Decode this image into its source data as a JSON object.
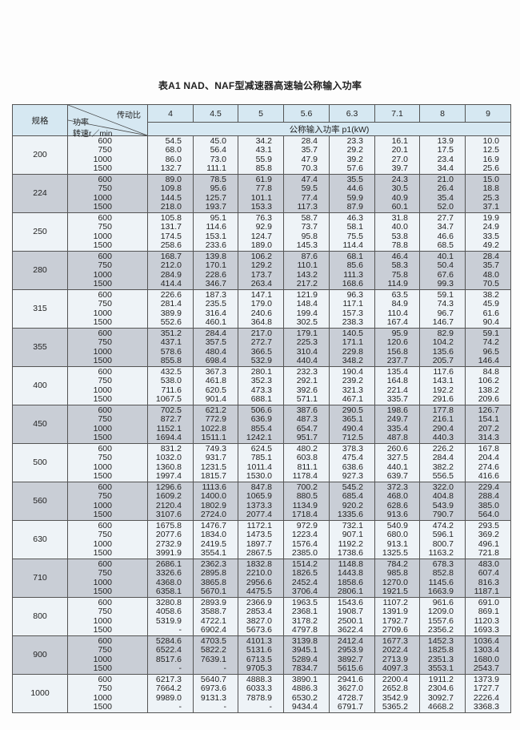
{
  "title": "表A1   NAD、NAF型减速器高速轴公称输入功率",
  "header": {
    "spec_label": "规格",
    "ratio_label": "传动比",
    "power_label": "功率",
    "speed_label": "转速r／min",
    "unit_label": "公称输入功率 p1(kW)",
    "ratios": [
      "4",
      "4.5",
      "5",
      "5.6",
      "6.3",
      "7.1",
      "8",
      "9"
    ]
  },
  "speeds": [
    "600",
    "750",
    "1000",
    "1500"
  ],
  "groups": [
    {
      "size": "200",
      "values": [
        [
          "54.5",
          "68.0",
          "86.0",
          "132.7"
        ],
        [
          "45.0",
          "56.4",
          "73.0",
          "111.1"
        ],
        [
          "34.2",
          "43.1",
          "55.9",
          "85.8"
        ],
        [
          "28.4",
          "35.7",
          "47.9",
          "70.3"
        ],
        [
          "23.3",
          "29.2",
          "39.2",
          "57.6"
        ],
        [
          "16.1",
          "20.1",
          "27.0",
          "39.7"
        ],
        [
          "13.9",
          "17.5",
          "23.4",
          "34.4"
        ],
        [
          "10.0",
          "12.5",
          "16.9",
          "25.6"
        ]
      ]
    },
    {
      "size": "224",
      "values": [
        [
          "89.0",
          "109.8",
          "144.5",
          "218.0"
        ],
        [
          "78.5",
          "95.6",
          "125.7",
          "193.7"
        ],
        [
          "61.9",
          "77.8",
          "101.1",
          "153.3"
        ],
        [
          "47.4",
          "59.5",
          "77.4",
          "117.3"
        ],
        [
          "35.5",
          "44.6",
          "59.9",
          "87.9"
        ],
        [
          "24.3",
          "30.5",
          "40.9",
          "60.1"
        ],
        [
          "21.0",
          "26.4",
          "35.4",
          "52.0"
        ],
        [
          "15.0",
          "18.8",
          "25.3",
          "37.1"
        ]
      ]
    },
    {
      "size": "250",
      "values": [
        [
          "105.8",
          "131.7",
          "174.5",
          "258.6"
        ],
        [
          "95.1",
          "114.6",
          "153.1",
          "233.6"
        ],
        [
          "76.3",
          "92.9",
          "124.7",
          "189.0"
        ],
        [
          "58.7",
          "73.7",
          "95.8",
          "145.3"
        ],
        [
          "46.3",
          "58.1",
          "75.5",
          "114.4"
        ],
        [
          "31.8",
          "40.0",
          "53.8",
          "78.8"
        ],
        [
          "27.7",
          "34.7",
          "46.6",
          "68.5"
        ],
        [
          "19.9",
          "24.9",
          "33.5",
          "49.2"
        ]
      ]
    },
    {
      "size": "280",
      "values": [
        [
          "168.7",
          "212.0",
          "284.9",
          "414.4"
        ],
        [
          "139.8",
          "170.1",
          "228.6",
          "346.7"
        ],
        [
          "106.2",
          "129.2",
          "173.7",
          "263.4"
        ],
        [
          "87.6",
          "110.1",
          "143.2",
          "217.2"
        ],
        [
          "68.1",
          "85.6",
          "111.3",
          "168.6"
        ],
        [
          "46.4",
          "58.3",
          "75.8",
          "114.9"
        ],
        [
          "40.1",
          "50.4",
          "67.6",
          "99.3"
        ],
        [
          "28.4",
          "35.7",
          "48.0",
          "70.5"
        ]
      ]
    },
    {
      "size": "315",
      "values": [
        [
          "226.6",
          "281.4",
          "389.9",
          "552.6"
        ],
        [
          "187.3",
          "235.5",
          "316.4",
          "460.1"
        ],
        [
          "147.1",
          "179.0",
          "240.6",
          "364.8"
        ],
        [
          "121.9",
          "148.4",
          "199.4",
          "302.5"
        ],
        [
          "96.3",
          "117.1",
          "157.3",
          "238.3"
        ],
        [
          "63.5",
          "84.9",
          "110.4",
          "167.4"
        ],
        [
          "59.1",
          "74.3",
          "96.7",
          "146.7"
        ],
        [
          "38.2",
          "45.9",
          "61.6",
          "90.4"
        ]
      ]
    },
    {
      "size": "355",
      "values": [
        [
          "351.2",
          "437.1",
          "578.6",
          "855.8"
        ],
        [
          "284.4",
          "357.5",
          "480.4",
          "698.4"
        ],
        [
          "217.0",
          "272.7",
          "366.5",
          "532.9"
        ],
        [
          "179.1",
          "225.3",
          "310.4",
          "440.4"
        ],
        [
          "140.5",
          "171.1",
          "229.8",
          "348.2"
        ],
        [
          "95.9",
          "120.6",
          "156.8",
          "237.7"
        ],
        [
          "82.9",
          "104.2",
          "135.6",
          "205.7"
        ],
        [
          "59.1",
          "74.2",
          "96.5",
          "146.4"
        ]
      ]
    },
    {
      "size": "400",
      "values": [
        [
          "432.5",
          "538.0",
          "711.6",
          "1067.5"
        ],
        [
          "367.3",
          "461.8",
          "620.5",
          "901.4"
        ],
        [
          "280.1",
          "352.3",
          "473.3",
          "688.1"
        ],
        [
          "232.3",
          "292.1",
          "392.6",
          "571.1"
        ],
        [
          "190.4",
          "239.2",
          "321.3",
          "467.1"
        ],
        [
          "135.4",
          "164.8",
          "221.4",
          "335.7"
        ],
        [
          "117.6",
          "143.1",
          "192.2",
          "291.6"
        ],
        [
          "84.8",
          "106.2",
          "138.2",
          "209.6"
        ]
      ]
    },
    {
      "size": "450",
      "values": [
        [
          "702.5",
          "872.7",
          "1152.1",
          "1694.4"
        ],
        [
          "621.2",
          "772.9",
          "1022.8",
          "1511.1"
        ],
        [
          "506.6",
          "636.9",
          "855.4",
          "1242.1"
        ],
        [
          "387.6",
          "487.3",
          "654.7",
          "951.7"
        ],
        [
          "290.5",
          "365.1",
          "490.4",
          "712.5"
        ],
        [
          "198.6",
          "249.7",
          "335.4",
          "487.8"
        ],
        [
          "177.8",
          "216.1",
          "290.4",
          "440.3"
        ],
        [
          "126.7",
          "154.1",
          "207.2",
          "314.3"
        ]
      ]
    },
    {
      "size": "500",
      "values": [
        [
          "831.2",
          "1032.0",
          "1360.8",
          "1997.4"
        ],
        [
          "749.3",
          "931.7",
          "1231.5",
          "1815.7"
        ],
        [
          "624.5",
          "785.1",
          "1011.4",
          "1530.0"
        ],
        [
          "480.2",
          "603.8",
          "811.1",
          "1178.4"
        ],
        [
          "378.3",
          "475.4",
          "638.6",
          "927.3"
        ],
        [
          "260.6",
          "327.5",
          "440.1",
          "639.7"
        ],
        [
          "226.2",
          "284.4",
          "382.2",
          "556.5"
        ],
        [
          "167.8",
          "204.4",
          "274.6",
          "416.6"
        ]
      ]
    },
    {
      "size": "560",
      "values": [
        [
          "1296.6",
          "1609.2",
          "2120.4",
          "3107.6"
        ],
        [
          "1113.6",
          "1400.0",
          "1802.9",
          "2724.0"
        ],
        [
          "847.8",
          "1065.9",
          "1373.3",
          "2077.4"
        ],
        [
          "700.2",
          "880.5",
          "1134.9",
          "1718.4"
        ],
        [
          "545.2",
          "685.4",
          "920.2",
          "1335.6"
        ],
        [
          "372.3",
          "468.0",
          "628.6",
          "913.6"
        ],
        [
          "322.0",
          "404.8",
          "543.9",
          "790.7"
        ],
        [
          "229.4",
          "288.4",
          "385.0",
          "564.0"
        ]
      ]
    },
    {
      "size": "630",
      "values": [
        [
          "1675.8",
          "2077.6",
          "2732.9",
          "3991.9"
        ],
        [
          "1476.7",
          "1834.0",
          "2419.5",
          "3554.1"
        ],
        [
          "1172.1",
          "1473.5",
          "1897.7",
          "2867.5"
        ],
        [
          "972.9",
          "1223.4",
          "1576.4",
          "2385.0"
        ],
        [
          "732.1",
          "907.1",
          "1192.2",
          "1738.6"
        ],
        [
          "540.9",
          "680.0",
          "913.1",
          "1325.5"
        ],
        [
          "474.2",
          "596.1",
          "800.7",
          "1163.2"
        ],
        [
          "293.5",
          "369.2",
          "496.1",
          "721.8"
        ]
      ]
    },
    {
      "size": "710",
      "values": [
        [
          "2686.1",
          "3326.6",
          "4368.0",
          "6358.1"
        ],
        [
          "2362.3",
          "2895.8",
          "3865.8",
          "5670.1"
        ],
        [
          "1832.8",
          "2210.0",
          "2956.6",
          "4475.5"
        ],
        [
          "1514.2",
          "1826.5",
          "2452.4",
          "3706.4"
        ],
        [
          "1148.8",
          "1443.8",
          "1858.6",
          "2806.1"
        ],
        [
          "784.2",
          "985.8",
          "1270.0",
          "1921.5"
        ],
        [
          "678.3",
          "852.8",
          "1145.6",
          "1663.9"
        ],
        [
          "483.0",
          "607.4",
          "816.3",
          "1187.1"
        ]
      ]
    },
    {
      "size": "800",
      "values": [
        [
          "3280.8",
          "4058.6",
          "5319.9",
          "-"
        ],
        [
          "2893.9",
          "3588.7",
          "4722.1",
          "6902.4"
        ],
        [
          "2366.9",
          "2853.4",
          "3827.0",
          "5673.6"
        ],
        [
          "1963.5",
          "2368.1",
          "3178.2",
          "4797.8"
        ],
        [
          "1543.6",
          "1908.7",
          "2500.1",
          "3622.4"
        ],
        [
          "1107.2",
          "1391.9",
          "1792.7",
          "2709.6"
        ],
        [
          "961.6",
          "1209.0",
          "1557.6",
          "2356.2"
        ],
        [
          "691.0",
          "869.1",
          "1120.3",
          "1693.3"
        ]
      ]
    },
    {
      "size": "900",
      "values": [
        [
          "5284.6",
          "6522.4",
          "8517.6",
          "-"
        ],
        [
          "4703.5",
          "5822.2",
          "7639.1",
          "-"
        ],
        [
          "4101.3",
          "5131.6",
          "6713.5",
          "9705.3"
        ],
        [
          "3139.8",
          "3945.1",
          "5289.4",
          "7834.7"
        ],
        [
          "2412.4",
          "2953.9",
          "3892.7",
          "5615.6"
        ],
        [
          "1677.3",
          "2022.4",
          "2713.9",
          "4097.3"
        ],
        [
          "1452.3",
          "1825.8",
          "2351.3",
          "3553.1"
        ],
        [
          "1036.4",
          "1303.4",
          "1680.0",
          "2543.7"
        ]
      ]
    },
    {
      "size": "1000",
      "values": [
        [
          "6217.3",
          "7664.2",
          "9989.0",
          "-"
        ],
        [
          "5640.7",
          "6973.6",
          "9131.3",
          "-"
        ],
        [
          "4888.3",
          "6033.3",
          "7878.9",
          "-"
        ],
        [
          "3890.1",
          "4886.3",
          "6530.2",
          "9434.4"
        ],
        [
          "2941.6",
          "3627.0",
          "4728.7",
          "6791.7"
        ],
        [
          "2200.4",
          "2652.8",
          "3542.9",
          "5365.2"
        ],
        [
          "1911.2",
          "2304.6",
          "3092.7",
          "4668.2"
        ],
        [
          "1373.9",
          "1727.7",
          "2226.4",
          "3368.3"
        ]
      ]
    }
  ]
}
